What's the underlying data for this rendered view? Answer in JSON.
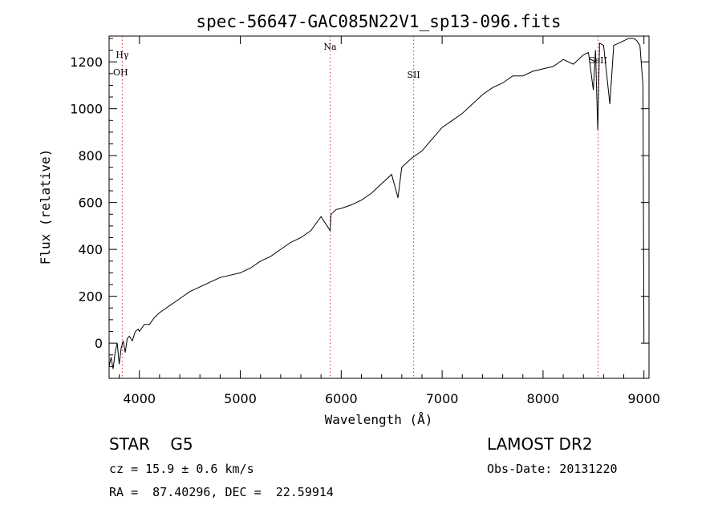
{
  "chart_data": {
    "type": "line",
    "title": "spec-56647-GAC085N22V1_sp13-096.fits",
    "xlabel": "Wavelength (Å)",
    "ylabel": "Flux (relative)",
    "xlim": [
      3700,
      9050
    ],
    "ylim": [
      -150,
      1310
    ],
    "xticks": [
      4000,
      5000,
      6000,
      7000,
      8000,
      9000
    ],
    "yticks": [
      0,
      200,
      400,
      600,
      800,
      1000,
      1200
    ],
    "grid": false,
    "series": [
      {
        "color": "#000000",
        "x": [
          3700,
          3720,
          3740,
          3760,
          3780,
          3800,
          3820,
          3840,
          3860,
          3880,
          3900,
          3930,
          3960,
          3990,
          4000,
          4050,
          4100,
          4150,
          4200,
          4300,
          4400,
          4500,
          4600,
          4700,
          4800,
          4900,
          5000,
          5100,
          5200,
          5300,
          5400,
          5500,
          5600,
          5700,
          5800,
          5890,
          5900,
          5950,
          6000,
          6100,
          6200,
          6300,
          6400,
          6500,
          6563,
          6600,
          6700,
          6800,
          6900,
          7000,
          7100,
          7200,
          7300,
          7400,
          7500,
          7600,
          7700,
          7800,
          7900,
          8000,
          8100,
          8200,
          8300,
          8400,
          8450,
          8498,
          8520,
          8542,
          8560,
          8600,
          8662,
          8700,
          8750,
          8800,
          8850,
          8900,
          8930,
          8960,
          8990,
          9000
        ],
        "y": [
          -100,
          -60,
          -110,
          -40,
          0,
          -90,
          -20,
          10,
          -40,
          20,
          30,
          10,
          50,
          60,
          50,
          80,
          80,
          110,
          130,
          160,
          190,
          220,
          240,
          260,
          280,
          290,
          300,
          320,
          350,
          370,
          400,
          430,
          450,
          480,
          540,
          480,
          550,
          570,
          575,
          590,
          610,
          640,
          680,
          720,
          620,
          750,
          790,
          820,
          870,
          920,
          950,
          980,
          1020,
          1060,
          1090,
          1110,
          1140,
          1140,
          1160,
          1170,
          1180,
          1210,
          1190,
          1230,
          1240,
          1080,
          1250,
          910,
          1280,
          1270,
          1020,
          1270,
          1280,
          1290,
          1300,
          1300,
          1290,
          1270,
          1100,
          0
        ]
      }
    ],
    "lines": [
      {
        "label": "Hγ",
        "x": 3830,
        "color": "#cc3333"
      },
      {
        "label": "OH",
        "x": 3830,
        "color": "#cc3333"
      },
      {
        "label": "Na",
        "x": 5890,
        "color": "#cc3333"
      },
      {
        "label": "SII",
        "x": 6718,
        "color": "#cc3333"
      },
      {
        "label": "SeII",
        "x": 8545,
        "color": "#cc3333"
      }
    ]
  },
  "info": {
    "class": "STAR    G5",
    "survey": "LAMOST DR2",
    "cz": "cz = 15.9 ± 0.6 km/s",
    "obs_date": "Obs-Date: 20131220",
    "coords": "RA =  87.40296, DEC =  22.59914"
  }
}
